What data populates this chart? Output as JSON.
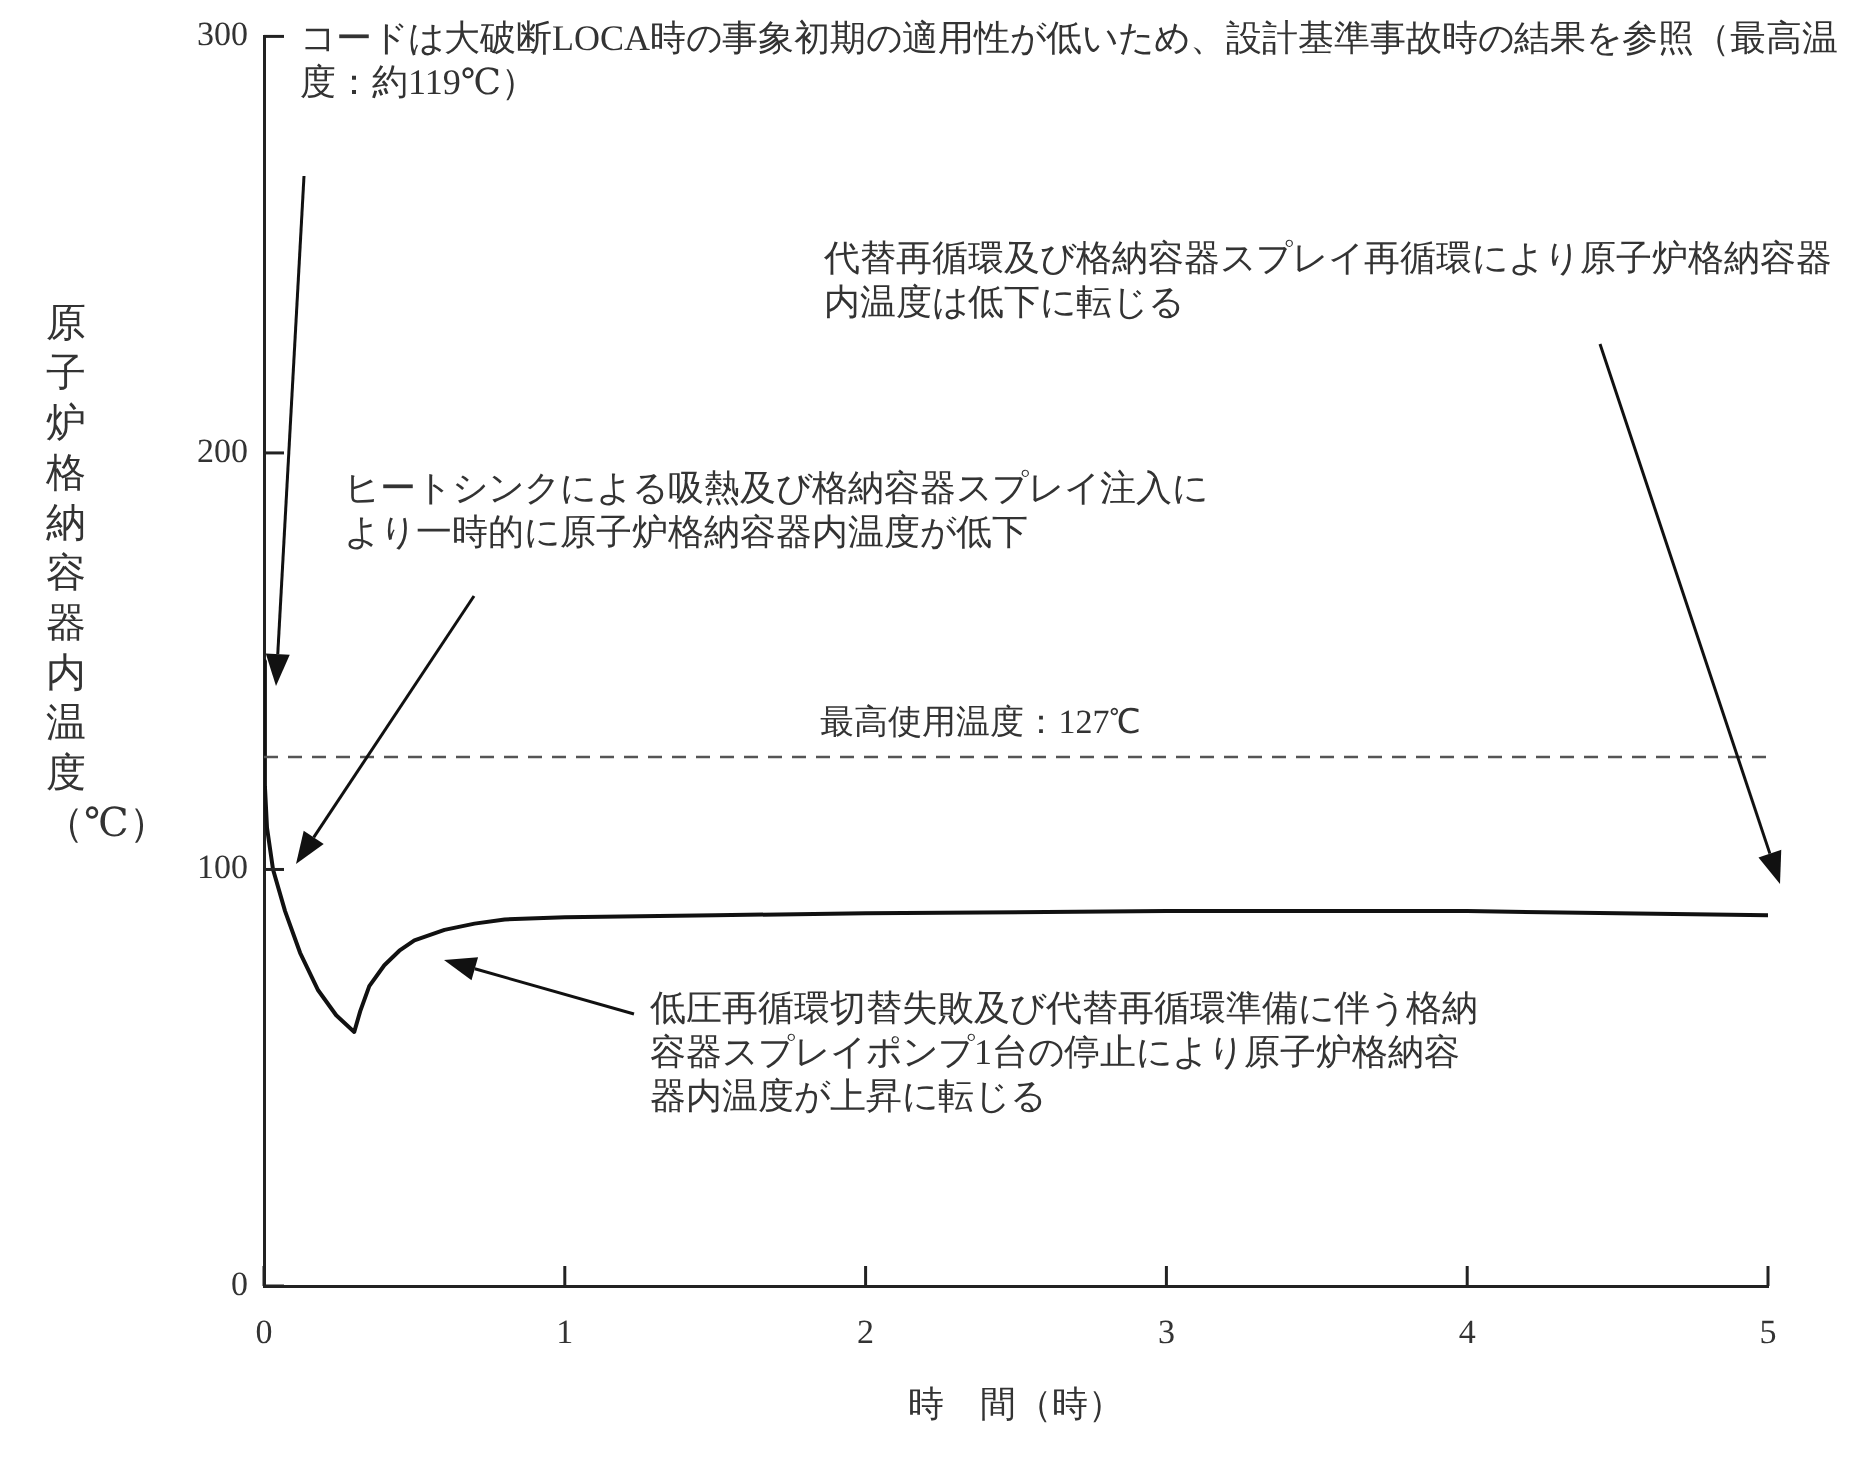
{
  "chart_data": {
    "type": "line",
    "xlabel": "時　間（時）",
    "ylabel": "原子炉格納容器内温度（℃）",
    "x": [
      0,
      0.003,
      0.01,
      0.03,
      0.07,
      0.12,
      0.18,
      0.24,
      0.3,
      0.32,
      0.35,
      0.4,
      0.45,
      0.5,
      0.6,
      0.7,
      0.8,
      1.0,
      1.5,
      2,
      3,
      4,
      5
    ],
    "series": [
      {
        "color": "#111111",
        "values": [
          150,
          120,
          110,
          100,
          90,
          80,
          71,
          65,
          61,
          66,
          72,
          77,
          80.5,
          83,
          85.5,
          87,
          88,
          88.5,
          89,
          89.5,
          90,
          90,
          89
        ]
      }
    ],
    "xlim": [
      0,
      5
    ],
    "xticks": [
      0,
      1,
      2,
      3,
      4,
      5
    ],
    "ylim": [
      0,
      300
    ],
    "yticks": [
      0,
      100,
      200,
      300
    ],
    "grid": false,
    "legend": false,
    "marker": "none",
    "line_style": "solid",
    "ref_lines": [
      {
        "axis": "y",
        "value": 127,
        "label": "最高使用温度：127℃",
        "line_style": "dashed",
        "color": "#555555"
      }
    ],
    "annotations": [
      "コードは大破断LOCA時の事象初期の適用性が低いため、設計基準事故時の結果を参照（最高温度：約119℃）",
      "代替再循環及び格納容器スプレイ再循環により原子炉格納容器内温度は低下に転じる",
      "ヒートシンクによる吸熱及び格納容器スプレイ注入により一時的に原子炉格納容器内温度が低下",
      "低圧再循環切替失敗及び代替再循環準備に伴う格納容器スプレイポンプ1台の停止により原子炉格納容器内温度が上昇に転じる"
    ]
  }
}
